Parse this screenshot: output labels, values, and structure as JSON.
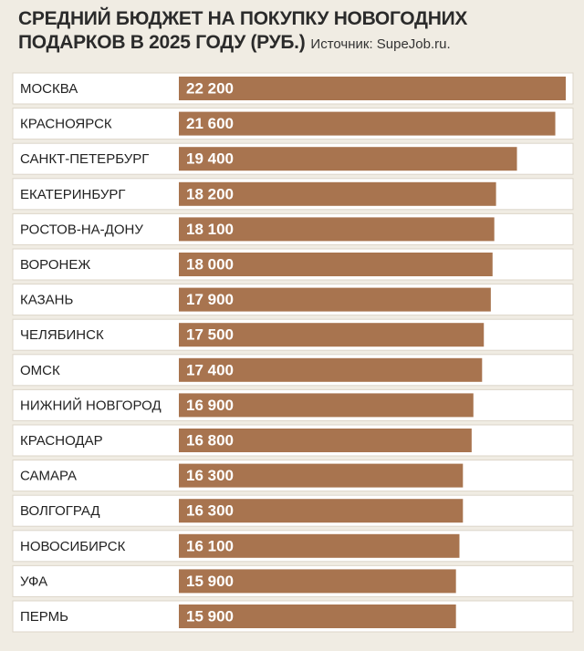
{
  "chart_data": {
    "type": "bar",
    "orientation": "horizontal",
    "title": "СРЕДНИЙ БЮДЖЕТ НА ПОКУПКУ НОВОГОДНИХ ПОДАРКОВ В 2025 ГОДУ (РУБ.)",
    "source": "Источник: SupeJob.ru.",
    "categories": [
      "МОСКВА",
      "КРАСНОЯРСК",
      "САНКТ-ПЕТЕРБУРГ",
      "ЕКАТЕРИНБУРГ",
      "РОСТОВ-НА-ДОНУ",
      "ВОРОНЕЖ",
      "КАЗАНЬ",
      "ЧЕЛЯБИНСК",
      "ОМСК",
      "НИЖНИЙ НОВГОРОД",
      "КРАСНОДАР",
      "САМАРА",
      "ВОЛГОГРАД",
      "НОВОСИБИРСК",
      "УФА",
      "ПЕРМЬ"
    ],
    "values": [
      22200,
      21600,
      19400,
      18200,
      18100,
      18000,
      17900,
      17500,
      17400,
      16900,
      16800,
      16300,
      16300,
      16100,
      15900,
      15900
    ],
    "value_labels": [
      "22 200",
      "21 600",
      "19 400",
      "18 200",
      "18 100",
      "18 000",
      "17 900",
      "17 500",
      "17 400",
      "16 900",
      "16 800",
      "16 300",
      "16 300",
      "16 100",
      "15 900",
      "15 900"
    ],
    "color": "#a8744f"
  }
}
